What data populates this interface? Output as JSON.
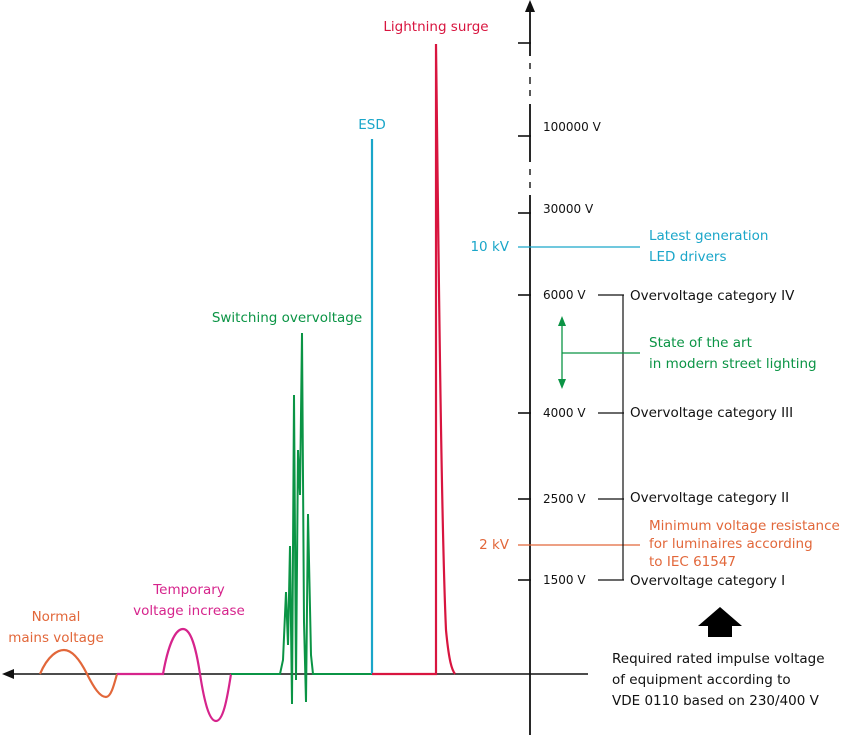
{
  "colors": {
    "axis": "#111111",
    "mains": "#e2673a",
    "temporary": "#d6248c",
    "switching": "#0b9445",
    "esd": "#1aa6c9",
    "lightning": "#d8153f",
    "led": "#1aa6c9",
    "street": "#0b9445",
    "minimum": "#e2673a"
  },
  "waveforms": {
    "mains_label_line1": "Normal",
    "mains_label_line2": "mains voltage",
    "temporary_label_line1": "Temporary",
    "temporary_label_line2": "voltage increase",
    "switching_label": "Switching overvoltage",
    "esd_label": "ESD",
    "lightning_label": "Lightning surge"
  },
  "axis": {
    "tick_100000": "100000 V",
    "tick_30000": "30000 V",
    "tick_6000": "6000 V",
    "tick_4000": "4000 V",
    "tick_2500": "2500 V",
    "tick_1500": "1500 V",
    "marker_10kv": "10 kV",
    "marker_2kv": "2 kV"
  },
  "annotations": {
    "led_line1": "Latest generation",
    "led_line2": "LED drivers",
    "street_line1": "State of the art",
    "street_line2": "in modern street lighting",
    "min_line1": "Minimum voltage resistance",
    "min_line2": "for luminaires according",
    "min_line3": "to IEC 61547"
  },
  "categories": {
    "cat4": "Overvoltage category IV",
    "cat3": "Overvoltage category III",
    "cat2": "Overvoltage category II",
    "cat1": "Overvoltage category I"
  },
  "footer": {
    "line1": "Required rated impulse voltage",
    "line2": "of equipment according to",
    "line3": "VDE 0110 based on 230/400 V"
  }
}
